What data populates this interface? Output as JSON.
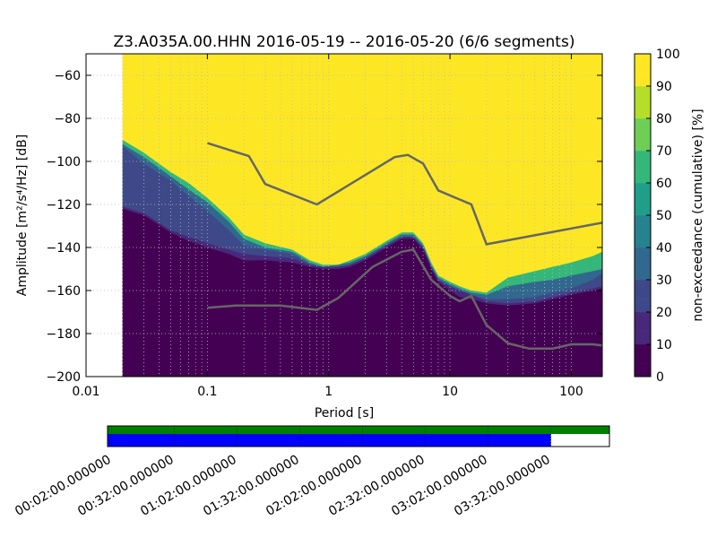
{
  "chart_data": [
    {
      "type": "heatmap",
      "title": "Z3.A035A.00.HHN   2016-05-19 -- 2016-05-20  (6/6 segments)",
      "xlabel": "Period [s]",
      "ylabel": "Amplitude",
      "ylabel_units": "[m²/s⁴/Hz] [dB]",
      "x_scale": "log",
      "xlim": [
        0.01,
        180
      ],
      "ylim": [
        -200,
        -50
      ],
      "x_ticks": [
        0.01,
        0.1,
        1,
        10,
        100
      ],
      "x_tick_labels": [
        "0.01",
        "0.1",
        "1",
        "10",
        "100"
      ],
      "y_ticks": [
        -200,
        -180,
        -160,
        -140,
        -120,
        -100,
        -80,
        -60
      ],
      "y_tick_labels": [
        "−200",
        "−180",
        "−160",
        "−140",
        "−120",
        "−100",
        "−80",
        "−60"
      ],
      "grid": true,
      "data_start_period": 0.02,
      "colorbar": {
        "label": "non-exceedance (cumulative) [%]",
        "range": [
          0,
          100
        ],
        "ticks": [
          0,
          10,
          20,
          30,
          40,
          50,
          60,
          70,
          80,
          90,
          100
        ],
        "colormap": "viridis"
      },
      "percentile_bands": {
        "periods": [
          0.02,
          0.03,
          0.05,
          0.07,
          0.1,
          0.15,
          0.2,
          0.3,
          0.5,
          0.7,
          0.9,
          1.2,
          1.5,
          2,
          3,
          4,
          5,
          6,
          7,
          8,
          10,
          12,
          15,
          20,
          30,
          50,
          70,
          100,
          150,
          180
        ],
        "p10": [
          -122,
          -125,
          -133,
          -137,
          -140,
          -143,
          -146,
          -146,
          -147,
          -149,
          -150,
          -150,
          -149,
          -146,
          -140,
          -136,
          -136,
          -141,
          -150,
          -156,
          -160,
          -163,
          -164,
          -166,
          -167,
          -166,
          -164,
          -162,
          -160,
          -159
        ],
        "p20": [
          -121,
          -124,
          -132,
          -135,
          -138,
          -141,
          -143,
          -144,
          -145,
          -148,
          -149,
          -149,
          -148,
          -145,
          -139,
          -135,
          -135,
          -140,
          -149,
          -155,
          -158,
          -160,
          -162,
          -165,
          -166,
          -165,
          -163,
          -161,
          -159,
          -158
        ],
        "p50": [
          -93,
          -101,
          -109,
          -116,
          -123,
          -132,
          -139,
          -141,
          -143,
          -148,
          -149,
          -149,
          -148,
          -145,
          -139,
          -135,
          -135,
          -140,
          -149,
          -155,
          -158,
          -160,
          -162,
          -164,
          -164,
          -163,
          -161,
          -159,
          -155,
          -152
        ],
        "p80": [
          -92,
          -98,
          -107,
          -113,
          -119,
          -128,
          -136,
          -140,
          -142,
          -147,
          -149,
          -148,
          -147,
          -144,
          -138,
          -134,
          -134,
          -139,
          -148,
          -154,
          -157,
          -159,
          -161,
          -162,
          -158,
          -156,
          -155,
          -153,
          -151,
          -150
        ],
        "p100": [
          -90,
          -96,
          -105,
          -110,
          -117,
          -126,
          -134,
          -138,
          -141,
          -146,
          -148,
          -148,
          -146,
          -143,
          -137,
          -133,
          -133,
          -138,
          -147,
          -153,
          -156,
          -158,
          -160,
          -161,
          -154,
          -151,
          -149,
          -147,
          -144,
          -142
        ]
      },
      "series": [
        {
          "x": [
            0.1,
            0.22,
            0.3,
            0.8,
            3.5,
            4.5,
            6,
            8,
            15,
            20,
            180
          ],
          "y": [
            -91.5,
            -97.5,
            -110.5,
            -120,
            -98,
            -97,
            -101,
            -113.5,
            -120,
            -138.5,
            -128.5
          ],
          "color": "#666666"
        },
        {
          "x": [
            0.1,
            0.17,
            0.4,
            0.8,
            1.2,
            2.3,
            4,
            5,
            7,
            10,
            12,
            15,
            20,
            30,
            45,
            70,
            100,
            150,
            180
          ],
          "y": [
            -168,
            -167,
            -167,
            -169,
            -163.5,
            -149,
            -142,
            -141,
            -155,
            -162.5,
            -165,
            -162.5,
            -176,
            -184.5,
            -187,
            -187,
            -185,
            -185,
            -185.5
          ],
          "color": "#666666"
        }
      ]
    },
    {
      "type": "timeline",
      "tick_labels": [
        "00:02:00.000000",
        "00:32:00.000000",
        "01:02:00.000000",
        "01:32:00.000000",
        "02:02:00.000000",
        "02:32:00.000000",
        "03:02:00.000000",
        "03:32:00.000000"
      ],
      "tick_minutes": [
        2,
        32,
        62,
        92,
        122,
        152,
        182,
        212
      ],
      "range_minutes": [
        0,
        240
      ],
      "bars": [
        {
          "color": "#008000",
          "start": 0,
          "end": 240
        },
        {
          "color": "#0000ff",
          "start": 0,
          "end": 212
        }
      ]
    }
  ]
}
